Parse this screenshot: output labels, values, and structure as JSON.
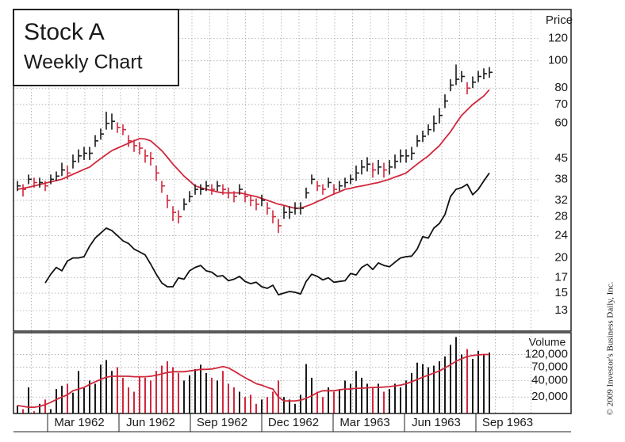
{
  "chart_data": [
    {
      "type": "ohlc",
      "title": "Stock A",
      "subtitle": "Weekly Chart",
      "y_label": "Price",
      "log_scale": true,
      "grid": true,
      "ylim": [
        11,
        152
      ],
      "yticks": [
        120,
        100,
        80,
        70,
        60,
        45,
        38,
        32,
        28,
        24,
        20,
        17,
        15,
        13
      ],
      "up_color": "#1a1a1a",
      "down_color": "#d0283c",
      "high": [
        37.5,
        36.5,
        39.5,
        38.5,
        38.5,
        37.5,
        39.5,
        40.5,
        43.5,
        42.5,
        46.5,
        48.5,
        49.5,
        49.5,
        54.5,
        57.5,
        66,
        65,
        60.5,
        59.5,
        54.5,
        52.5,
        51.5,
        48.5,
        47.5,
        42.5,
        37.5,
        33.5,
        30.5,
        29.5,
        32.5,
        34.5,
        36.5,
        36.5,
        37.5,
        36.5,
        37.5,
        36.5,
        35.5,
        34.5,
        36.5,
        34.5,
        33.5,
        32.5,
        33.5,
        31.5,
        29.5,
        27.5,
        30.5,
        30.5,
        31.5,
        31.5,
        35.5,
        39.5,
        37.5,
        36.5,
        38.5,
        36.5,
        37.5,
        38.5,
        39.5,
        42.5,
        44.5,
        45.5,
        43.5,
        44.5,
        43.5,
        44.5,
        46.5,
        48.5,
        48.5,
        49.5,
        54.5,
        56.5,
        59.5,
        64,
        68,
        76,
        86,
        97,
        92,
        84,
        88,
        92,
        94,
        95
      ],
      "low": [
        34.5,
        33,
        36.5,
        35.5,
        35.5,
        34.5,
        36.5,
        37.5,
        39,
        38,
        41.5,
        43.5,
        44.5,
        44.5,
        49.5,
        52.5,
        57,
        57,
        55.5,
        54.5,
        49.5,
        47.5,
        46.5,
        43.5,
        42.5,
        37.5,
        34,
        30,
        27,
        26.5,
        29.5,
        31.5,
        33.5,
        33.5,
        34.5,
        33.5,
        34.5,
        33.5,
        32.5,
        31.5,
        33.5,
        31.5,
        30.5,
        29.5,
        30.5,
        28.5,
        26.5,
        24.5,
        27.5,
        27.5,
        28.5,
        28.5,
        32.5,
        36.5,
        34.5,
        33.5,
        35.5,
        33.5,
        34.5,
        35.5,
        36.5,
        37.5,
        39.5,
        40.5,
        38.5,
        39.5,
        38.5,
        39.5,
        41.5,
        43.5,
        43.5,
        44.5,
        49.5,
        51.5,
        54.5,
        56,
        60,
        68,
        78,
        82,
        84,
        76,
        80,
        84,
        86,
        87
      ],
      "close": [
        36,
        35,
        38,
        37,
        37,
        36,
        38,
        39,
        41,
        40,
        44,
        46,
        47,
        47,
        52,
        55,
        60,
        61,
        58,
        57,
        52,
        50,
        49,
        46,
        45,
        40,
        36,
        32,
        29,
        28,
        31,
        33,
        35,
        35,
        36,
        35,
        36,
        35,
        34,
        33,
        35,
        33,
        32,
        31,
        32,
        30,
        28,
        26,
        29,
        29,
        30,
        30,
        34,
        38,
        36,
        35,
        37,
        35,
        36,
        37,
        38,
        40,
        42,
        43,
        41,
        42,
        41,
        42,
        44,
        46,
        46,
        47,
        52,
        54,
        57,
        60,
        64,
        72,
        82,
        86,
        88,
        80,
        84,
        88,
        90,
        91
      ],
      "moving_average": {
        "color": "#d0283c",
        "values": [
          35,
          35.3,
          35.6,
          36,
          36.4,
          36.8,
          37.2,
          37.6,
          38,
          38.8,
          39.6,
          40.4,
          41.2,
          42,
          43.5,
          45,
          46.5,
          48,
          49,
          50,
          51,
          52,
          53,
          52.8,
          52,
          50,
          48,
          45.5,
          43,
          41,
          39,
          37.5,
          36,
          35.5,
          35,
          34.7,
          34.3,
          34,
          34,
          34,
          34,
          33.7,
          33.3,
          33,
          32.5,
          32,
          31.5,
          31,
          30.7,
          30.3,
          30,
          30,
          30.5,
          31,
          31.7,
          32.3,
          33,
          33.7,
          34.3,
          35,
          35.3,
          35.7,
          36,
          36.3,
          36.7,
          37,
          37.5,
          38,
          38.7,
          39.3,
          40,
          41.5,
          43,
          44.5,
          46,
          48,
          50,
          53,
          56,
          60,
          64,
          67,
          70,
          72.5,
          75,
          79
        ]
      },
      "relative_strength": {
        "color": "#111111",
        "values": [
          null,
          null,
          null,
          null,
          null,
          16.3,
          17.5,
          18.5,
          18,
          19.5,
          20,
          20,
          20.2,
          22,
          23.5,
          24.5,
          25.5,
          25,
          24,
          23,
          22.5,
          21.5,
          21,
          20.5,
          19,
          17.5,
          16.3,
          15.8,
          15.8,
          17,
          16.8,
          18,
          18.5,
          18.8,
          18,
          17.8,
          17.2,
          17.3,
          16.6,
          16.8,
          17.2,
          16.5,
          16.2,
          16.4,
          15.8,
          15.6,
          16,
          14.8,
          15,
          15.2,
          15.1,
          14.9,
          16.5,
          17.5,
          17.2,
          16.7,
          17,
          16.4,
          16.5,
          16.6,
          17.6,
          17.4,
          18.5,
          19,
          18.2,
          19.2,
          18.8,
          18.6,
          19.3,
          20,
          20.2,
          20.3,
          21.5,
          23.8,
          23.5,
          25.5,
          26.5,
          28.5,
          33,
          35,
          35.5,
          36.5,
          33.5,
          35,
          37.5,
          40
        ]
      },
      "date_labels": [
        "Mar 1962",
        "Jun 1962",
        "Sep 1962",
        "Dec 1962",
        "Mar 1963",
        "Jun 1963",
        "Sep 1963"
      ],
      "credit": "© 2009 Investor's Business Daily, Inc."
    },
    {
      "type": "bar",
      "y_label": "Volume",
      "log_scale": true,
      "grid": true,
      "ylim": [
        10000,
        300000
      ],
      "yticks": [
        {
          "value": 120000,
          "label": "120,000"
        },
        {
          "value": 70000,
          "label": "70,000"
        },
        {
          "value": 40000,
          "label": "40,000"
        },
        {
          "value": 20000,
          "label": "20,000"
        }
      ],
      "values": [
        14000,
        12000,
        30000,
        11000,
        15000,
        18000,
        12000,
        28000,
        32000,
        35000,
        24000,
        60000,
        30000,
        40000,
        35000,
        78000,
        95000,
        60000,
        70000,
        45000,
        30000,
        25000,
        48000,
        45000,
        40000,
        60000,
        75000,
        90000,
        70000,
        55000,
        40000,
        50000,
        65000,
        78000,
        55000,
        45000,
        40000,
        60000,
        35000,
        30000,
        25000,
        20000,
        22000,
        15000,
        18000,
        20000,
        25000,
        40000,
        20000,
        18000,
        15000,
        22000,
        80000,
        45000,
        25000,
        20000,
        30000,
        25000,
        28000,
        40000,
        35000,
        60000,
        45000,
        35000,
        30000,
        35000,
        25000,
        28000,
        35000,
        30000,
        40000,
        55000,
        85000,
        80000,
        70000,
        75000,
        90000,
        110000,
        180000,
        250000,
        120000,
        150000,
        100000,
        140000,
        120000,
        130000
      ],
      "moving_average": {
        "color": "#d0283c",
        "values": [
          14000,
          13500,
          13000,
          13000,
          13500,
          14500,
          16000,
          18000,
          20000,
          22000,
          26000,
          28000,
          30000,
          34000,
          38000,
          42000,
          46000,
          48000,
          48000,
          48000,
          48000,
          47000,
          47000,
          47000,
          48000,
          50000,
          53000,
          56000,
          58000,
          58000,
          58000,
          60000,
          62000,
          64000,
          64000,
          65000,
          68000,
          72000,
          68000,
          60000,
          52000,
          45000,
          40000,
          35000,
          33000,
          30000,
          28000,
          20000,
          17000,
          17000,
          17000,
          17500,
          19000,
          21000,
          24000,
          26000,
          26000,
          26000,
          27000,
          28000,
          28000,
          29000,
          29000,
          29500,
          30000,
          30000,
          30500,
          31000,
          32000,
          33000,
          35000,
          38000,
          42000,
          46000,
          50000,
          55000,
          60000,
          68000,
          78000,
          90000,
          100000,
          110000,
          115000,
          118000,
          120000,
          120000
        ]
      }
    }
  ]
}
